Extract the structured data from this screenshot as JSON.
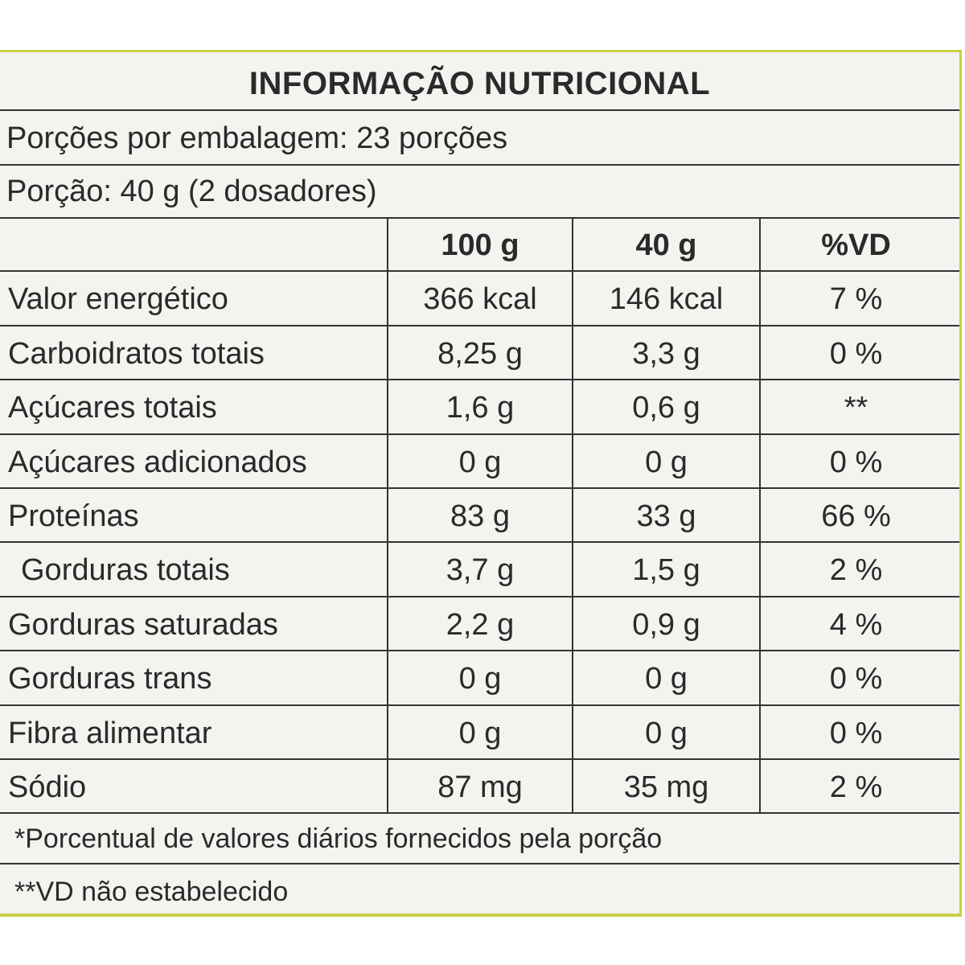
{
  "title": "INFORMAÇÃO NUTRICIONAL",
  "servings_per_package": "Porções por embalagem: 23 porções",
  "serving_size": "Porção: 40 g (2 dosadores)",
  "columns": [
    "",
    "100 g",
    "40 g",
    "%VD"
  ],
  "rows": [
    {
      "name": "Valor energético",
      "per100": "366 kcal",
      "perServing": "146 kcal",
      "vd": "7 %"
    },
    {
      "name": "Carboidratos totais",
      "per100": "8,25 g",
      "perServing": "3,3 g",
      "vd": "0 %"
    },
    {
      "name": "Açúcares totais",
      "per100": "1,6 g",
      "perServing": "0,6 g",
      "vd": "**"
    },
    {
      "name": "Açúcares adicionados",
      "per100": "0 g",
      "perServing": "0 g",
      "vd": "0 %"
    },
    {
      "name": "Proteínas",
      "per100": "83 g",
      "perServing": "33 g",
      "vd": "66 %"
    },
    {
      "name": "Gorduras totais",
      "per100": "3,7 g",
      "perServing": "1,5 g",
      "vd": "2 %"
    },
    {
      "name": "Gorduras saturadas",
      "per100": "2,2 g",
      "perServing": "0,9 g",
      "vd": "4 %"
    },
    {
      "name": "Gorduras trans",
      "per100": "0 g",
      "perServing": "0 g",
      "vd": "0 %"
    },
    {
      "name": "Fibra alimentar",
      "per100": "0 g",
      "perServing": "0 g",
      "vd": "0 %"
    },
    {
      "name": "Sódio",
      "per100": "87 mg",
      "perServing": "35 mg",
      "vd": "2 %"
    }
  ],
  "footnotes": [
    "*Porcentual de valores diários fornecidos pela porção",
    "**VD não estabelecido"
  ],
  "colors": {
    "border_accent": "#c9cf43",
    "background": "#f3f3f0",
    "text": "#2a2a2a"
  }
}
